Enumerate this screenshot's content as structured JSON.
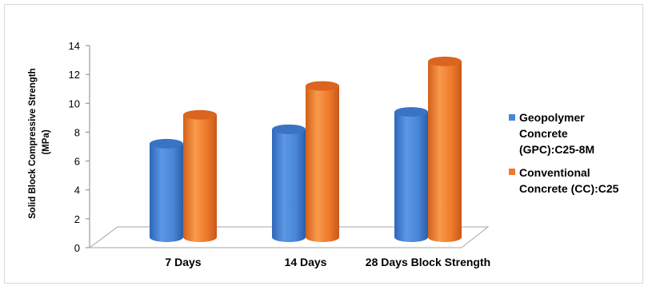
{
  "chart_data": {
    "type": "bar",
    "style": "3d-cylinder",
    "categories": [
      "7 Days",
      "14 Days",
      "28 Days Block Strength"
    ],
    "series": [
      {
        "name": "Geopolymer Concrete (GPC):C25-8M",
        "values": [
          7.2,
          8.2,
          9.4
        ],
        "color": "#4a86d6"
      },
      {
        "name": "Conventional Concrete (CC):C25",
        "values": [
          9.2,
          11.2,
          12.9
        ],
        "color": "#ee7a2b"
      }
    ],
    "ylabel_lines": [
      "Solid Block Compressive Strength",
      "(MPa)"
    ],
    "ylim": [
      0,
      14
    ],
    "yticks": [
      "0",
      "2",
      "4",
      "6",
      "8",
      "10",
      "12",
      "14"
    ],
    "legend_position": "right",
    "legend_lines": [
      [
        "Geopolymer",
        "Concrete",
        "(GPC):C25-8M"
      ],
      [
        "Conventional",
        "Concrete (CC):C25"
      ]
    ],
    "grid": false
  }
}
